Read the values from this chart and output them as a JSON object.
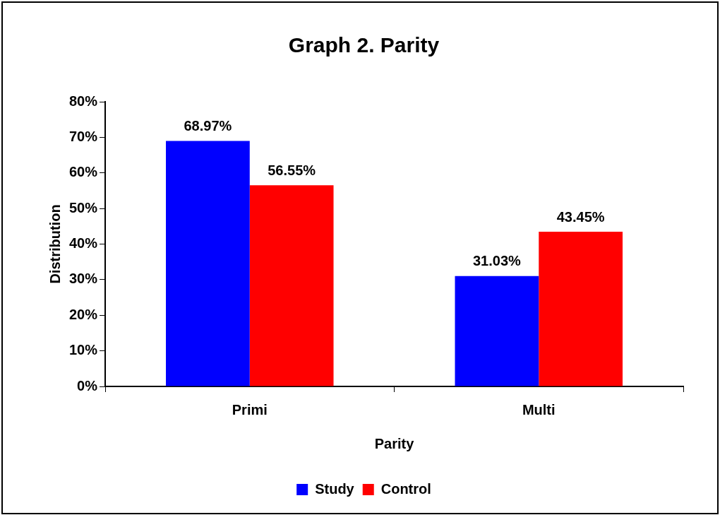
{
  "chart_data": {
    "type": "bar",
    "title": "Graph 2. Parity",
    "xlabel": "Parity",
    "ylabel": "Distribution",
    "categories": [
      "Primi",
      "Multi"
    ],
    "series": [
      {
        "name": "Study",
        "color": "#0000ff",
        "values": [
          68.97,
          31.03
        ],
        "value_labels": [
          "68.97%",
          "31.03%"
        ]
      },
      {
        "name": "Control",
        "color": "#ff0000",
        "values": [
          56.55,
          43.45
        ],
        "value_labels": [
          "56.55%",
          "43.45%"
        ]
      }
    ],
    "ylim": [
      0,
      80
    ],
    "yticks": [
      {
        "value": 0,
        "label": "0%"
      },
      {
        "value": 10,
        "label": "10%"
      },
      {
        "value": 20,
        "label": "20%"
      },
      {
        "value": 30,
        "label": "30%"
      },
      {
        "value": 40,
        "label": "40%"
      },
      {
        "value": 50,
        "label": "50%"
      },
      {
        "value": 60,
        "label": "60%"
      },
      {
        "value": 70,
        "label": "70%"
      },
      {
        "value": 80,
        "label": "80%"
      }
    ],
    "grid": false,
    "legend": "bottom"
  }
}
